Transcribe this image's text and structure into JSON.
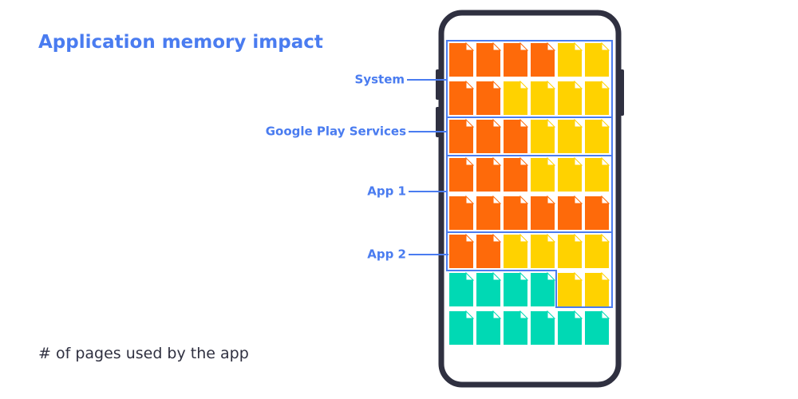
{
  "header": {
    "title": "Application memory impact"
  },
  "footer": {
    "text": "# of pages used by the app"
  },
  "labels": [
    "System",
    "Google Play Services",
    "App 1",
    "App 2"
  ]
}
